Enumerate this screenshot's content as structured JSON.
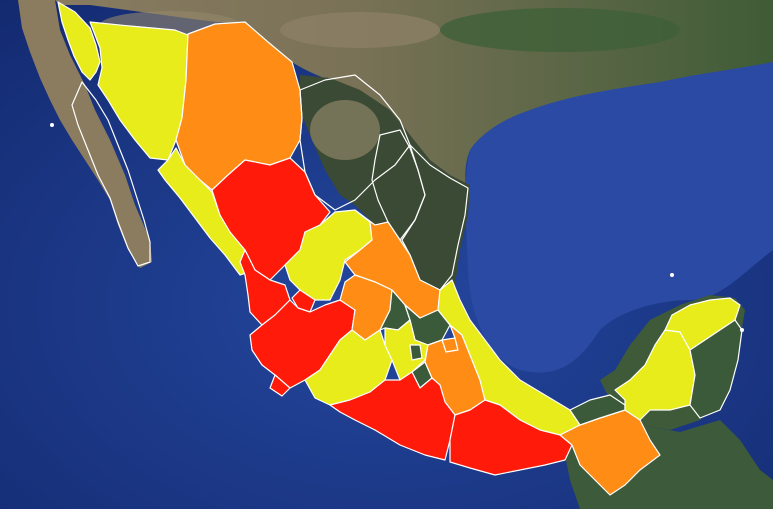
{
  "map": {
    "colors": {
      "ocean": "#1f3f94",
      "ocean_deep": "#14307c",
      "land_green": "#3f5a33",
      "land_desert": "#8a7a5e",
      "land_dark": "#37483a",
      "red": "#ff1a0a",
      "orange": "#ff8c14",
      "yellow": "#e8ec1a",
      "green": "#3b5a3a",
      "border": "#ffffff"
    },
    "regions": [
      {
        "name": "baja-california",
        "level": "yellow"
      },
      {
        "name": "baja-california-sur",
        "level": "none"
      },
      {
        "name": "sonora",
        "level": "yellow"
      },
      {
        "name": "chihuahua",
        "level": "orange"
      },
      {
        "name": "coahuila",
        "level": "none"
      },
      {
        "name": "nuevo-leon",
        "level": "none"
      },
      {
        "name": "tamaulipas",
        "level": "none"
      },
      {
        "name": "sinaloa",
        "level": "yellow"
      },
      {
        "name": "durango",
        "level": "red"
      },
      {
        "name": "zacatecas",
        "level": "yellow"
      },
      {
        "name": "san-luis-potosi",
        "level": "orange"
      },
      {
        "name": "nayarit",
        "level": "red"
      },
      {
        "name": "aguascalientes",
        "level": "red"
      },
      {
        "name": "jalisco",
        "level": "red"
      },
      {
        "name": "guanajuato",
        "level": "orange"
      },
      {
        "name": "queretaro",
        "level": "none"
      },
      {
        "name": "hidalgo",
        "level": "none"
      },
      {
        "name": "colima",
        "level": "red"
      },
      {
        "name": "michoacan",
        "level": "yellow"
      },
      {
        "name": "mexico-state",
        "level": "yellow"
      },
      {
        "name": "cdmx",
        "level": "none"
      },
      {
        "name": "morelos",
        "level": "none"
      },
      {
        "name": "tlaxcala",
        "level": "orange"
      },
      {
        "name": "puebla",
        "level": "orange"
      },
      {
        "name": "veracruz",
        "level": "yellow"
      },
      {
        "name": "guerrero",
        "level": "red"
      },
      {
        "name": "oaxaca",
        "level": "red"
      },
      {
        "name": "chiapas",
        "level": "orange"
      },
      {
        "name": "tabasco",
        "level": "none"
      },
      {
        "name": "campeche",
        "level": "yellow"
      },
      {
        "name": "yucatan",
        "level": "yellow"
      },
      {
        "name": "quintana-roo",
        "level": "none"
      }
    ]
  }
}
